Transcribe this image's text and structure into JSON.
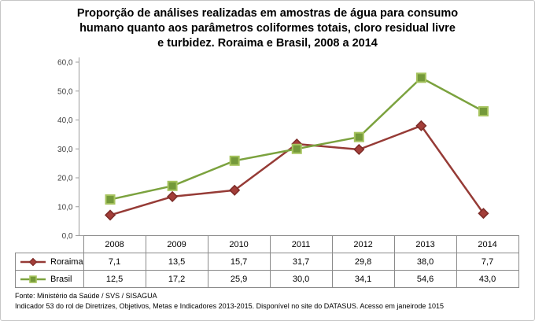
{
  "title": {
    "line1": "Proporção de análises realizadas em amostras de água para consumo",
    "line2": "humano quanto aos parâmetros coliformes totais, cloro residual livre",
    "line3": "e turbidez. Roraima e Brasil, 2008 a 2014"
  },
  "chart_data": {
    "type": "line",
    "categories": [
      "2008",
      "2009",
      "2010",
      "2011",
      "2012",
      "2013",
      "2014"
    ],
    "series": [
      {
        "name": "Roraima",
        "values": [
          7.1,
          13.5,
          15.7,
          31.7,
          29.8,
          38.0,
          7.7
        ],
        "display": [
          "7,1",
          "13,5",
          "15,7",
          "31,7",
          "29,8",
          "38,0",
          "7,7"
        ],
        "color": "#963B36",
        "marker": "diamond",
        "marker_fill": "#A33E39",
        "marker_stroke": "#7C2B27"
      },
      {
        "name": "Brasil",
        "values": [
          12.5,
          17.2,
          25.9,
          30.0,
          34.1,
          54.6,
          43.0
        ],
        "display": [
          "12,5",
          "17,2",
          "25,9",
          "30,0",
          "34,1",
          "54,6",
          "43,0"
        ],
        "color": "#7BA23E",
        "marker": "square",
        "marker_fill": "#74993A",
        "marker_stroke": "#A6C35E"
      }
    ],
    "ylim": [
      0,
      60
    ],
    "yticks": [
      "0,0",
      "10,0",
      "20,0",
      "30,0",
      "40,0",
      "50,0",
      "60,0"
    ],
    "grid": false,
    "legend_position": "table-left",
    "xlabel": "",
    "ylabel": ""
  },
  "footer": {
    "line1": "Fonte: Ministério da Saúde / SVS / SISAGUA",
    "line2": "Indicador 53 do rol de Diretrizes, Objetivos, Metas e Indicadores 2013-2015. Disponível no site do DATASUS. Acesso em janeirode 1015"
  },
  "colors": {
    "axis": "#9c9c9c",
    "table_border": "#8a8a8a",
    "tick_label": "#3f3f3f",
    "text": "#000000",
    "figure_border": "#c6c6c6"
  }
}
